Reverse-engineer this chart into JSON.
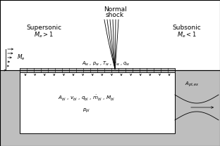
{
  "bg_color": "#bebebe",
  "white": "#ffffff",
  "black": "#000000",
  "dark_gray": "#a0a0a0",
  "porous_color": "#c0c0c0",
  "fig_width": 3.12,
  "fig_height": 2.08,
  "supersonic_label": "Supersonic",
  "supersonic_math": "$M_e > 1$",
  "subsonic_label": "Subsonic",
  "subsonic_math": "$M_e < 1$",
  "shock_label1": "Normal",
  "shock_label2": "shock",
  "wall_label": "$A_w$ , $p_w$ , $T_w$ , $\\tau_w$ , $q_w$",
  "plenum_label1": "$A_{bl}$ , $v_{bl}$ , $q_{bl}$ , $\\dot{m}_{bl}$ , $M_{bl}$",
  "plenum_label2": "$p_{pl}$",
  "exit_label": "$A_{pt,ex}$",
  "me_label": "$M_e$"
}
